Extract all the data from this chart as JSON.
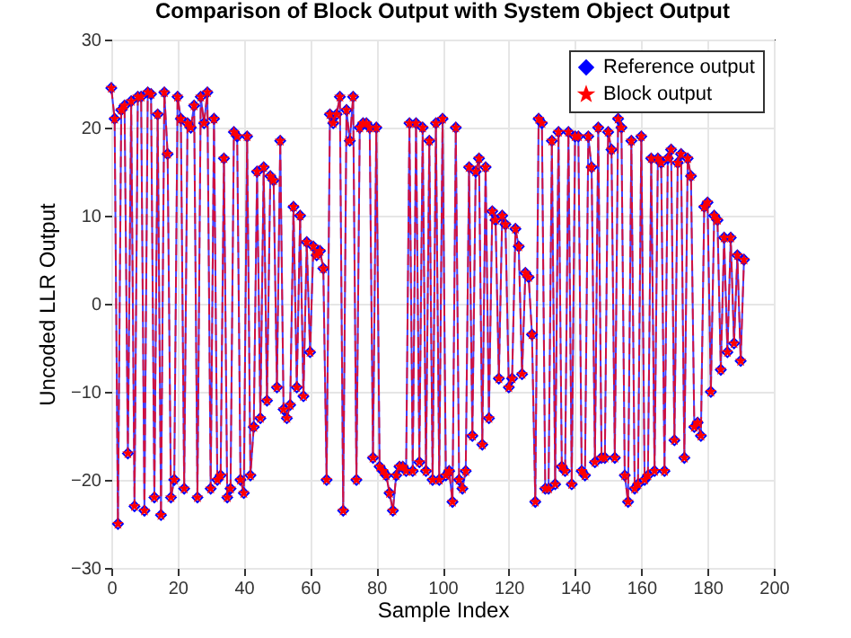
{
  "chart_data": {
    "type": "line",
    "title": "Comparison of Block Output with System Object Output",
    "xlabel": "Sample Index",
    "ylabel": "Uncoded LLR Output",
    "x": [
      0,
      1,
      2,
      3,
      4,
      5,
      6,
      7,
      8,
      9,
      10,
      11,
      12,
      13,
      14,
      15,
      16,
      17,
      18,
      19,
      20,
      21,
      22,
      23,
      24,
      25,
      26,
      27,
      28,
      29,
      30,
      31,
      32,
      33,
      34,
      35,
      36,
      37,
      38,
      39,
      40,
      41,
      42,
      43,
      44,
      45,
      46,
      47,
      48,
      49,
      50,
      51,
      52,
      53,
      54,
      55,
      56,
      57,
      58,
      59,
      60,
      61,
      62,
      63,
      64,
      65,
      66,
      67,
      68,
      69,
      70,
      71,
      72,
      73,
      74,
      75,
      76,
      77,
      78,
      79,
      80,
      81,
      82,
      83,
      84,
      85,
      86,
      87,
      88,
      89,
      90,
      91,
      92,
      93,
      94,
      95,
      96,
      97,
      98,
      99,
      100,
      101,
      102,
      103,
      104,
      105,
      106,
      107,
      108,
      109,
      110,
      111,
      112,
      113,
      114,
      115,
      116,
      117,
      118,
      119,
      120,
      121,
      122,
      123,
      124,
      125,
      126,
      127,
      128,
      129,
      130,
      131,
      132,
      133,
      134,
      135,
      136,
      137,
      138,
      139,
      140,
      141,
      142,
      143,
      144,
      145,
      146,
      147,
      148,
      149,
      150,
      151,
      152,
      153,
      154,
      155,
      156,
      157,
      158,
      159,
      160,
      161,
      162,
      163,
      164,
      165,
      166,
      167,
      168,
      169,
      170,
      171,
      172,
      173,
      174,
      175,
      176,
      177,
      178,
      179,
      180,
      181,
      182,
      183,
      184,
      185,
      186,
      187,
      188,
      189,
      190,
      191
    ],
    "series": [
      {
        "name": "Reference output",
        "color": "#0000ff",
        "marker": "diamond",
        "line_style": "solid",
        "values": [
          24.5,
          21,
          -25,
          22,
          22.5,
          -17,
          23,
          -23,
          23.5,
          23.5,
          -23.5,
          24,
          23.8,
          -22,
          21.5,
          -24,
          24,
          17,
          -22,
          -20,
          23.5,
          21,
          -21,
          20.5,
          20,
          22.5,
          -22,
          23.5,
          20.5,
          24,
          -21,
          21,
          -20,
          -19.5,
          16.5,
          -22,
          -21,
          19.5,
          19,
          -20,
          -21.5,
          19,
          -19.5,
          -14,
          15,
          -13,
          15.5,
          -11,
          14.5,
          14,
          -9.5,
          18.5,
          -12,
          -13,
          -11.5,
          11,
          -9.5,
          10,
          -10.5,
          7,
          -5.5,
          6.5,
          5.5,
          6,
          4,
          -20,
          21.5,
          20.5,
          21.5,
          23.5,
          -23.5,
          22,
          18.5,
          23.5,
          -20,
          20,
          20.5,
          20.5,
          20,
          -17.5,
          20,
          -18.5,
          -19,
          -19.5,
          -21.5,
          -23.5,
          -19.5,
          -18.5,
          -18.5,
          -19,
          20.5,
          -19,
          20.5,
          -18,
          20,
          -19,
          18.5,
          -20,
          20.5,
          -20,
          21,
          -19.5,
          -19,
          -22.5,
          20,
          -20,
          -21,
          -19,
          15.5,
          -15,
          15,
          16.5,
          -16,
          15.5,
          -13,
          10.5,
          9.5,
          -8.5,
          10,
          9,
          -9.5,
          -8.5,
          8.5,
          6.5,
          -8,
          3.5,
          3,
          -3.5,
          -22.5,
          21,
          20.5,
          -21,
          -21,
          18.5,
          -20.5,
          19.5,
          -18.5,
          -19,
          19.5,
          -20.5,
          19,
          19,
          -19,
          -19.5,
          19,
          15.5,
          -18,
          20,
          -17.5,
          -17.5,
          19.5,
          17.5,
          -17.5,
          21,
          20,
          -19.5,
          -22.5,
          18.5,
          -21,
          -20.5,
          19,
          -20,
          -19.5,
          16.5,
          -19,
          16.5,
          16,
          -19,
          16.5,
          17.5,
          -15.5,
          16,
          17,
          -17.5,
          16.5,
          14.5,
          -14,
          -13.5,
          -15,
          11,
          11.5,
          -10,
          10,
          9.5,
          -7.5,
          7.5,
          -5.5,
          7.5,
          -4.5,
          5.5,
          -6.5,
          5
        ]
      },
      {
        "name": "Block output",
        "color": "#ff0000",
        "marker": "star",
        "line_style": "dashed",
        "values": [
          24.5,
          21,
          -25,
          22,
          22.5,
          -17,
          23,
          -23,
          23.5,
          23.5,
          -23.5,
          24,
          23.8,
          -22,
          21.5,
          -24,
          24,
          17,
          -22,
          -20,
          23.5,
          21,
          -21,
          20.5,
          20,
          22.5,
          -22,
          23.5,
          20.5,
          24,
          -21,
          21,
          -20,
          -19.5,
          16.5,
          -22,
          -21,
          19.5,
          19,
          -20,
          -21.5,
          19,
          -19.5,
          -14,
          15,
          -13,
          15.5,
          -11,
          14.5,
          14,
          -9.5,
          18.5,
          -12,
          -13,
          -11.5,
          11,
          -9.5,
          10,
          -10.5,
          7,
          -5.5,
          6.5,
          5.5,
          6,
          4,
          -20,
          21.5,
          20.5,
          21.5,
          23.5,
          -23.5,
          22,
          18.5,
          23.5,
          -20,
          20,
          20.5,
          20.5,
          20,
          -17.5,
          20,
          -18.5,
          -19,
          -19.5,
          -21.5,
          -23.5,
          -19.5,
          -18.5,
          -18.5,
          -19,
          20.5,
          -19,
          20.5,
          -18,
          20,
          -19,
          18.5,
          -20,
          20.5,
          -20,
          21,
          -19.5,
          -19,
          -22.5,
          20,
          -20,
          -21,
          -19,
          15.5,
          -15,
          15,
          16.5,
          -16,
          15.5,
          -13,
          10.5,
          9.5,
          -8.5,
          10,
          9,
          -9.5,
          -8.5,
          8.5,
          6.5,
          -8,
          3.5,
          3,
          -3.5,
          -22.5,
          21,
          20.5,
          -21,
          -21,
          18.5,
          -20.5,
          19.5,
          -18.5,
          -19,
          19.5,
          -20.5,
          19,
          19,
          -19,
          -19.5,
          19,
          15.5,
          -18,
          20,
          -17.5,
          -17.5,
          19.5,
          17.5,
          -17.5,
          21,
          20,
          -19.5,
          -22.5,
          18.5,
          -21,
          -20.5,
          19,
          -20,
          -19.5,
          16.5,
          -19,
          16.5,
          16,
          -19,
          16.5,
          17.5,
          -15.5,
          16,
          17,
          -17.5,
          16.5,
          14.5,
          -14,
          -13.5,
          -15,
          11,
          11.5,
          -10,
          10,
          9.5,
          -7.5,
          7.5,
          -5.5,
          7.5,
          -4.5,
          5.5,
          -6.5,
          5
        ]
      }
    ],
    "xlim": [
      0,
      200
    ],
    "xticks": [
      0,
      20,
      40,
      60,
      80,
      100,
      120,
      140,
      160,
      180,
      200
    ],
    "ylim": [
      -30,
      30
    ],
    "yticks": [
      -30,
      -20,
      -10,
      0,
      10,
      20,
      30
    ],
    "grid": true,
    "legend": "top right"
  }
}
